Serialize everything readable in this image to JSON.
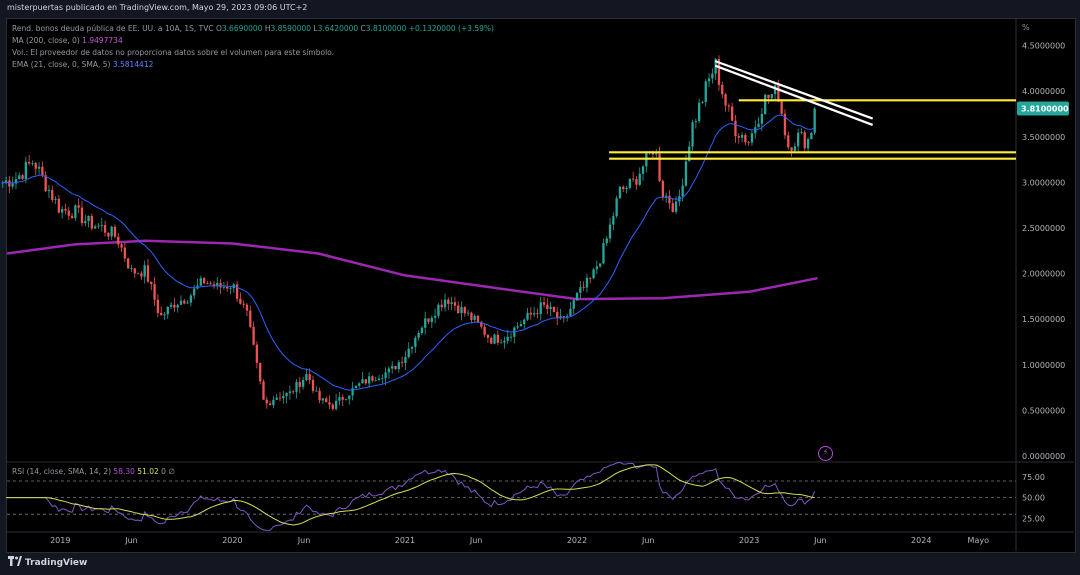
{
  "header": {
    "title": "misterpuertas publicado en TradingView.com, Mayo 29, 2023 09:06 UTC+2"
  },
  "legend": {
    "symbol_label": "Rend. bonos deuda pública de EE. UU. a 10A, 1S, TVC",
    "ohlc": [
      {
        "k": "O",
        "v": "3.6690000",
        "color": "#26a69a"
      },
      {
        "k": "H",
        "v": "3.8590000",
        "color": "#26a69a"
      },
      {
        "k": "L",
        "v": "3.6420000",
        "color": "#26a69a"
      },
      {
        "k": "C",
        "v": "3.8100000",
        "color": "#26a69a"
      }
    ],
    "change": "+0.1320000 (+3.59%)",
    "ma": {
      "label": "MA (200, close, 0)",
      "value": "1.9497734",
      "color": "#9c27b0"
    },
    "vol": "Vol.: El proveedor de datos no proporciona datos sobre el volumen para este símbolo.",
    "ema": {
      "label": "EMA (21, close, 0, SMA, 5)",
      "value": "3.5814412",
      "color": "#2962ff"
    }
  },
  "rsi_legend": {
    "label": "RSI (14, close, SMA, 14, 2)",
    "rsi": "58.30",
    "sma": "51.02",
    "rest": "0 ∅"
  },
  "price_scale": {
    "unit": "%",
    "ticks": [
      "4.5000000",
      "4.0000000",
      "3.5000000",
      "3.0000000",
      "2.5000000",
      "2.0000000",
      "1.5000000",
      "1.0000000",
      "0.5000000",
      "0.0000000"
    ],
    "last_price": "3.8100000"
  },
  "rsi_scale": {
    "ticks": [
      "75.00",
      "50.00",
      "25.00"
    ]
  },
  "time_scale": {
    "labels": [
      "2019",
      "Jun",
      "2020",
      "Jun",
      "2021",
      "Jun",
      "2022",
      "Jun",
      "2023",
      "Jun",
      "2024",
      "Mayo"
    ]
  },
  "footer": {
    "brand": "TradingView"
  },
  "colors": {
    "up": "#26a69a",
    "down": "#ef5350",
    "ema": "#2962ff",
    "ma": "#9c27b0",
    "support": "#ffeb3b",
    "trendline": "#ffffff"
  },
  "chart_data": {
    "type": "candlestick",
    "timeframe": "1W",
    "ylim": [
      0,
      4.6
    ],
    "close_path": [
      [
        "2018-09-01",
        3.0
      ],
      [
        "2018-10-01",
        3.05
      ],
      [
        "2018-11-05",
        3.24
      ],
      [
        "2018-12-01",
        2.98
      ],
      [
        "2019-01-01",
        2.7
      ],
      [
        "2019-02-01",
        2.68
      ],
      [
        "2019-03-01",
        2.56
      ],
      [
        "2019-04-01",
        2.5
      ],
      [
        "2019-05-01",
        2.4
      ],
      [
        "2019-06-01",
        2.02
      ],
      [
        "2019-07-01",
        2.03
      ],
      [
        "2019-08-01",
        1.52
      ],
      [
        "2019-09-01",
        1.68
      ],
      [
        "2019-10-01",
        1.75
      ],
      [
        "2019-11-01",
        1.92
      ],
      [
        "2019-12-01",
        1.85
      ],
      [
        "2020-01-01",
        1.88
      ],
      [
        "2020-02-01",
        1.55
      ],
      [
        "2020-03-09",
        0.55
      ],
      [
        "2020-04-01",
        0.65
      ],
      [
        "2020-05-01",
        0.68
      ],
      [
        "2020-06-08",
        0.9
      ],
      [
        "2020-07-01",
        0.62
      ],
      [
        "2020-08-01",
        0.55
      ],
      [
        "2020-09-01",
        0.68
      ],
      [
        "2020-10-01",
        0.8
      ],
      [
        "2020-11-01",
        0.88
      ],
      [
        "2020-12-01",
        0.93
      ],
      [
        "2021-01-01",
        1.1
      ],
      [
        "2021-02-01",
        1.4
      ],
      [
        "2021-03-29",
        1.74
      ],
      [
        "2021-05-01",
        1.6
      ],
      [
        "2021-06-01",
        1.47
      ],
      [
        "2021-07-01",
        1.28
      ],
      [
        "2021-08-01",
        1.3
      ],
      [
        "2021-09-01",
        1.45
      ],
      [
        "2021-10-20",
        1.65
      ],
      [
        "2021-11-15",
        1.55
      ],
      [
        "2021-12-01",
        1.45
      ],
      [
        "2022-01-01",
        1.75
      ],
      [
        "2022-02-01",
        1.95
      ],
      [
        "2022-03-01",
        2.3
      ],
      [
        "2022-04-01",
        2.9
      ],
      [
        "2022-05-01",
        3.0
      ],
      [
        "2022-06-14",
        3.4
      ],
      [
        "2022-07-01",
        2.9
      ],
      [
        "2022-08-01",
        2.7
      ],
      [
        "2022-09-01",
        3.6
      ],
      [
        "2022-10-21",
        4.3
      ],
      [
        "2022-11-15",
        3.8
      ],
      [
        "2022-12-01",
        3.6
      ],
      [
        "2023-01-01",
        3.45
      ],
      [
        "2023-02-01",
        3.9
      ],
      [
        "2023-03-03",
        4.0
      ],
      [
        "2023-03-24",
        3.4
      ],
      [
        "2023-04-15",
        3.5
      ],
      [
        "2023-05-05",
        3.45
      ],
      [
        "2023-05-26",
        3.81
      ]
    ],
    "horizontal_levels": [
      3.9,
      3.33,
      3.26
    ],
    "trendlines": [
      {
        "from": [
          "2022-10-21",
          4.33
        ],
        "to": [
          "2023-09-20",
          3.7
        ]
      },
      {
        "from": [
          "2022-10-21",
          4.28
        ],
        "to": [
          "2023-09-20",
          3.63
        ]
      }
    ],
    "rsi_levels": [
      70,
      50,
      30
    ]
  }
}
